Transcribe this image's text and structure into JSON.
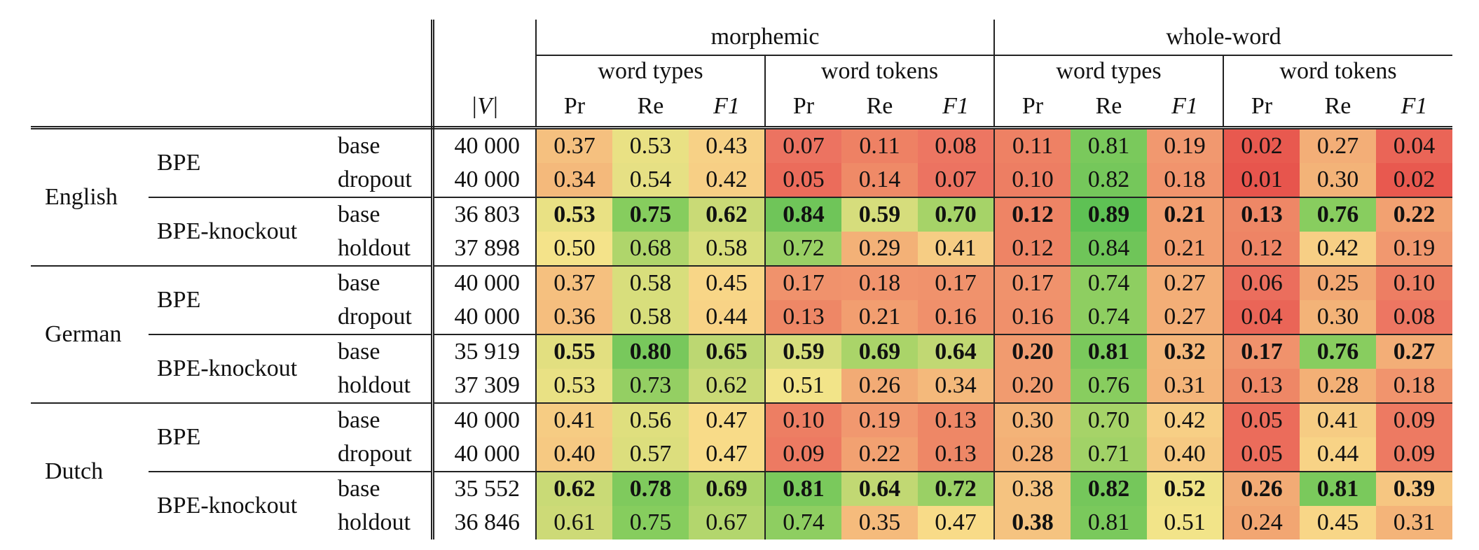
{
  "header": {
    "group_labels": [
      "morphemic",
      "whole-word"
    ],
    "sub_labels": [
      "word types",
      "word tokens",
      "word types",
      "word tokens"
    ],
    "vocab_label": "|V|",
    "metric_labels": [
      "Pr",
      "Re",
      "F1"
    ]
  },
  "rows": [
    {
      "lang": "English",
      "method": "BPE",
      "variant": "base",
      "V": "40 000",
      "cells": [
        {
          "v": "0.37",
          "c": "#f5c07f",
          "b": false
        },
        {
          "v": "0.53",
          "c": "#e9e184",
          "b": false
        },
        {
          "v": "0.43",
          "c": "#f7d186",
          "b": false
        },
        {
          "v": "0.07",
          "c": "#ec7361",
          "b": false
        },
        {
          "v": "0.11",
          "c": "#ee8164",
          "b": false
        },
        {
          "v": "0.08",
          "c": "#ed7662",
          "b": false
        },
        {
          "v": "0.11",
          "c": "#ee8164",
          "b": false
        },
        {
          "v": "0.81",
          "c": "#7ac95c",
          "b": false
        },
        {
          "v": "0.19",
          "c": "#f1986f",
          "b": false
        },
        {
          "v": "0.02",
          "c": "#e8594f",
          "b": false
        },
        {
          "v": "0.27",
          "c": "#f3ae77",
          "b": false
        },
        {
          "v": "0.04",
          "c": "#ea6557",
          "b": false
        }
      ]
    },
    {
      "lang": "",
      "method": "",
      "variant": "dropout",
      "V": "40 000",
      "cells": [
        {
          "v": "0.34",
          "c": "#f4b97b",
          "b": false
        },
        {
          "v": "0.54",
          "c": "#e6e084",
          "b": false
        },
        {
          "v": "0.42",
          "c": "#f7cf85",
          "b": false
        },
        {
          "v": "0.05",
          "c": "#eb6c5b",
          "b": false
        },
        {
          "v": "0.14",
          "c": "#ef8a67",
          "b": false
        },
        {
          "v": "0.07",
          "c": "#ec7361",
          "b": false
        },
        {
          "v": "0.10",
          "c": "#ed7e63",
          "b": false
        },
        {
          "v": "0.82",
          "c": "#75c75b",
          "b": false
        },
        {
          "v": "0.18",
          "c": "#f1946d",
          "b": false
        },
        {
          "v": "0.01",
          "c": "#e7554d",
          "b": false
        },
        {
          "v": "0.30",
          "c": "#f3b378",
          "b": false
        },
        {
          "v": "0.02",
          "c": "#e8594f",
          "b": false
        }
      ]
    },
    {
      "lang": "",
      "method": "BPE-knockout",
      "variant": "base",
      "V": "36 803",
      "cells": [
        {
          "v": "0.53",
          "c": "#e9e184",
          "b": true
        },
        {
          "v": "0.75",
          "c": "#86cd5e",
          "b": true
        },
        {
          "v": "0.62",
          "c": "#c9da76",
          "b": true
        },
        {
          "v": "0.84",
          "c": "#6fc559",
          "b": true
        },
        {
          "v": "0.59",
          "c": "#d6dd7c",
          "b": true
        },
        {
          "v": "0.70",
          "c": "#a6d368",
          "b": true
        },
        {
          "v": "0.12",
          "c": "#ee8465",
          "b": true
        },
        {
          "v": "0.89",
          "c": "#5ec154",
          "b": true
        },
        {
          "v": "0.21",
          "c": "#f29e70",
          "b": true
        },
        {
          "v": "0.13",
          "c": "#ee8766",
          "b": true
        },
        {
          "v": "0.76",
          "c": "#88cd5f",
          "b": true
        },
        {
          "v": "0.22",
          "c": "#f2a171",
          "b": true
        }
      ]
    },
    {
      "lang": "",
      "method": "",
      "variant": "holdout",
      "V": "37 898",
      "cells": [
        {
          "v": "0.50",
          "c": "#f4e38a",
          "b": false
        },
        {
          "v": "0.68",
          "c": "#afd56b",
          "b": false
        },
        {
          "v": "0.58",
          "c": "#d8de7c",
          "b": false
        },
        {
          "v": "0.72",
          "c": "#9ad065",
          "b": false
        },
        {
          "v": "0.29",
          "c": "#f3b177",
          "b": false
        },
        {
          "v": "0.41",
          "c": "#f6cd84",
          "b": false
        },
        {
          "v": "0.12",
          "c": "#ee8465",
          "b": false
        },
        {
          "v": "0.84",
          "c": "#6fc559",
          "b": false
        },
        {
          "v": "0.21",
          "c": "#f29e70",
          "b": false
        },
        {
          "v": "0.12",
          "c": "#ee8465",
          "b": false
        },
        {
          "v": "0.42",
          "c": "#f7cf85",
          "b": false
        },
        {
          "v": "0.19",
          "c": "#f1986f",
          "b": false
        }
      ]
    },
    {
      "lang": "German",
      "method": "BPE",
      "variant": "base",
      "V": "40 000",
      "cells": [
        {
          "v": "0.37",
          "c": "#f5c07f",
          "b": false
        },
        {
          "v": "0.58",
          "c": "#d8de7c",
          "b": false
        },
        {
          "v": "0.45",
          "c": "#f8d687",
          "b": false
        },
        {
          "v": "0.17",
          "c": "#f0926c",
          "b": false
        },
        {
          "v": "0.18",
          "c": "#f1946d",
          "b": false
        },
        {
          "v": "0.17",
          "c": "#f0926c",
          "b": false
        },
        {
          "v": "0.17",
          "c": "#f0926c",
          "b": false
        },
        {
          "v": "0.74",
          "c": "#8ece61",
          "b": false
        },
        {
          "v": "0.27",
          "c": "#f3ae77",
          "b": false
        },
        {
          "v": "0.06",
          "c": "#eb6e5d",
          "b": false
        },
        {
          "v": "0.25",
          "c": "#f2a873",
          "b": false
        },
        {
          "v": "0.10",
          "c": "#ed7e63",
          "b": false
        }
      ]
    },
    {
      "lang": "",
      "method": "",
      "variant": "dropout",
      "V": "40 000",
      "cells": [
        {
          "v": "0.36",
          "c": "#f5be7e",
          "b": false
        },
        {
          "v": "0.58",
          "c": "#d8de7c",
          "b": false
        },
        {
          "v": "0.44",
          "c": "#f8d386",
          "b": false
        },
        {
          "v": "0.13",
          "c": "#ee8766",
          "b": false
        },
        {
          "v": "0.21",
          "c": "#f29e70",
          "b": false
        },
        {
          "v": "0.16",
          "c": "#f0906b",
          "b": false
        },
        {
          "v": "0.16",
          "c": "#f0906b",
          "b": false
        },
        {
          "v": "0.74",
          "c": "#8ece61",
          "b": false
        },
        {
          "v": "0.27",
          "c": "#f3ae77",
          "b": false
        },
        {
          "v": "0.04",
          "c": "#ea6557",
          "b": false
        },
        {
          "v": "0.30",
          "c": "#f3b378",
          "b": false
        },
        {
          "v": "0.08",
          "c": "#ed7662",
          "b": false
        }
      ]
    },
    {
      "lang": "",
      "method": "BPE-knockout",
      "variant": "base",
      "V": "35 919",
      "cells": [
        {
          "v": "0.55",
          "c": "#e2df80",
          "b": true
        },
        {
          "v": "0.80",
          "c": "#78c85c",
          "b": true
        },
        {
          "v": "0.65",
          "c": "#bcd772",
          "b": true
        },
        {
          "v": "0.59",
          "c": "#d6dd7c",
          "b": true
        },
        {
          "v": "0.69",
          "c": "#aad469",
          "b": true
        },
        {
          "v": "0.64",
          "c": "#c1d873",
          "b": true
        },
        {
          "v": "0.20",
          "c": "#f19b6f",
          "b": true
        },
        {
          "v": "0.81",
          "c": "#7ac95c",
          "b": true
        },
        {
          "v": "0.32",
          "c": "#f4b67a",
          "b": true
        },
        {
          "v": "0.17",
          "c": "#f0926c",
          "b": true
        },
        {
          "v": "0.76",
          "c": "#88cd5f",
          "b": true
        },
        {
          "v": "0.27",
          "c": "#f3ae77",
          "b": true
        }
      ]
    },
    {
      "lang": "",
      "method": "",
      "variant": "holdout",
      "V": "37 309",
      "cells": [
        {
          "v": "0.53",
          "c": "#e9e184",
          "b": false
        },
        {
          "v": "0.73",
          "c": "#94cf63",
          "b": false
        },
        {
          "v": "0.62",
          "c": "#c9da76",
          "b": false
        },
        {
          "v": "0.51",
          "c": "#f2e489",
          "b": false
        },
        {
          "v": "0.26",
          "c": "#f2ab75",
          "b": false
        },
        {
          "v": "0.34",
          "c": "#f4b97b",
          "b": false
        },
        {
          "v": "0.20",
          "c": "#f19b6f",
          "b": false
        },
        {
          "v": "0.76",
          "c": "#88cd5f",
          "b": false
        },
        {
          "v": "0.31",
          "c": "#f4b479",
          "b": false
        },
        {
          "v": "0.13",
          "c": "#ee8766",
          "b": false
        },
        {
          "v": "0.28",
          "c": "#f3b076",
          "b": false
        },
        {
          "v": "0.18",
          "c": "#f1946d",
          "b": false
        }
      ]
    },
    {
      "lang": "Dutch",
      "method": "BPE",
      "variant": "base",
      "V": "40 000",
      "cells": [
        {
          "v": "0.41",
          "c": "#f6cc83",
          "b": false
        },
        {
          "v": "0.56",
          "c": "#dfdf7e",
          "b": false
        },
        {
          "v": "0.47",
          "c": "#f8db88",
          "b": false
        },
        {
          "v": "0.10",
          "c": "#ed7e63",
          "b": false
        },
        {
          "v": "0.19",
          "c": "#f1986f",
          "b": false
        },
        {
          "v": "0.13",
          "c": "#ee8766",
          "b": false
        },
        {
          "v": "0.30",
          "c": "#f3b378",
          "b": false
        },
        {
          "v": "0.70",
          "c": "#a6d368",
          "b": false
        },
        {
          "v": "0.42",
          "c": "#f7cf85",
          "b": false
        },
        {
          "v": "0.05",
          "c": "#eb6c5b",
          "b": false
        },
        {
          "v": "0.41",
          "c": "#f6cc83",
          "b": false
        },
        {
          "v": "0.09",
          "c": "#ed7a62",
          "b": false
        }
      ]
    },
    {
      "lang": "",
      "method": "",
      "variant": "dropout",
      "V": "40 000",
      "cells": [
        {
          "v": "0.40",
          "c": "#f6c982",
          "b": false
        },
        {
          "v": "0.57",
          "c": "#dcde7d",
          "b": false
        },
        {
          "v": "0.47",
          "c": "#f8db88",
          "b": false
        },
        {
          "v": "0.09",
          "c": "#ed7a62",
          "b": false
        },
        {
          "v": "0.22",
          "c": "#f2a171",
          "b": false
        },
        {
          "v": "0.13",
          "c": "#ee8766",
          "b": false
        },
        {
          "v": "0.28",
          "c": "#f3b076",
          "b": false
        },
        {
          "v": "0.71",
          "c": "#a1d267",
          "b": false
        },
        {
          "v": "0.40",
          "c": "#f6c982",
          "b": false
        },
        {
          "v": "0.05",
          "c": "#eb6c5b",
          "b": false
        },
        {
          "v": "0.44",
          "c": "#f8d386",
          "b": false
        },
        {
          "v": "0.09",
          "c": "#ed7a62",
          "b": false
        }
      ]
    },
    {
      "lang": "",
      "method": "BPE-knockout",
      "variant": "base",
      "V": "35 552",
      "cells": [
        {
          "v": "0.62",
          "c": "#c9da76",
          "b": true
        },
        {
          "v": "0.78",
          "c": "#7fca5d",
          "b": true
        },
        {
          "v": "0.69",
          "c": "#aad469",
          "b": true
        },
        {
          "v": "0.81",
          "c": "#7ac95c",
          "b": true
        },
        {
          "v": "0.64",
          "c": "#c1d873",
          "b": true
        },
        {
          "v": "0.72",
          "c": "#9ad065",
          "b": true
        },
        {
          "v": "0.38",
          "c": "#f5c380",
          "b": false
        },
        {
          "v": "0.82",
          "c": "#75c75b",
          "b": true
        },
        {
          "v": "0.52",
          "c": "#efe388",
          "b": true
        },
        {
          "v": "0.26",
          "c": "#f2ab75",
          "b": true
        },
        {
          "v": "0.81",
          "c": "#7ac95c",
          "b": true
        },
        {
          "v": "0.39",
          "c": "#f6c681",
          "b": true
        }
      ]
    },
    {
      "lang": "",
      "method": "",
      "variant": "holdout",
      "V": "36 846",
      "cells": [
        {
          "v": "0.61",
          "c": "#cdda77",
          "b": false
        },
        {
          "v": "0.75",
          "c": "#86cd5e",
          "b": false
        },
        {
          "v": "0.67",
          "c": "#b3d66d",
          "b": false
        },
        {
          "v": "0.74",
          "c": "#8ece61",
          "b": false
        },
        {
          "v": "0.35",
          "c": "#f5bb7c",
          "b": false
        },
        {
          "v": "0.47",
          "c": "#f8db88",
          "b": false
        },
        {
          "v": "0.38",
          "c": "#f5c380",
          "b": true
        },
        {
          "v": "0.81",
          "c": "#7ac95c",
          "b": false
        },
        {
          "v": "0.51",
          "c": "#f2e489",
          "b": false
        },
        {
          "v": "0.24",
          "c": "#f2a672",
          "b": false
        },
        {
          "v": "0.45",
          "c": "#f8d687",
          "b": false
        },
        {
          "v": "0.31",
          "c": "#f4b479",
          "b": false
        }
      ]
    }
  ]
}
